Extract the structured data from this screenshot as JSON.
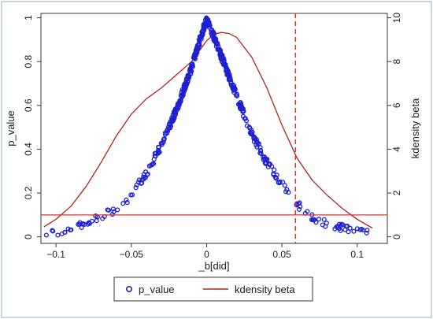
{
  "chart_data": {
    "type": "scatter",
    "xlabel": "_b[did]",
    "ylabel_left": "p_value",
    "ylabel_right": "kdensity beta",
    "xlim": [
      -0.11,
      0.12
    ],
    "ylim_left": [
      -0.03,
      1.02
    ],
    "ylim_right": [
      -0.3,
      10.2
    ],
    "x_ticks": [
      -0.1,
      -0.05,
      0,
      0.05,
      0.1
    ],
    "x_tick_labels": [
      "−0.1",
      "−0.05",
      "0",
      "0.05",
      "0.1"
    ],
    "y_left_ticks": [
      0,
      0.2,
      0.4,
      0.6,
      0.8,
      1
    ],
    "y_left_tick_labels": [
      "0",
      "0.2",
      "0.4",
      "0.6",
      "0.8",
      "1"
    ],
    "y_right_ticks": [
      0,
      2,
      4,
      6,
      8,
      10
    ],
    "y_right_tick_labels": [
      "0",
      "2",
      "4",
      "6",
      "8",
      "10"
    ],
    "reference_lines": {
      "horizontal_p_value": 0.1,
      "vertical_x": 0.059
    },
    "series": [
      {
        "name": "p_value",
        "kind": "scatter",
        "axis": "left",
        "color": "#1f1fd0",
        "envelope": [
          [
            -0.107,
            0.005
          ],
          [
            -0.1,
            0.02
          ],
          [
            -0.09,
            0.035
          ],
          [
            -0.08,
            0.06
          ],
          [
            -0.07,
            0.09
          ],
          [
            -0.06,
            0.13
          ],
          [
            -0.05,
            0.19
          ],
          [
            -0.04,
            0.29
          ],
          [
            -0.03,
            0.42
          ],
          [
            -0.02,
            0.58
          ],
          [
            -0.01,
            0.77
          ],
          [
            0,
            1.0
          ],
          [
            0.01,
            0.82
          ],
          [
            0.02,
            0.64
          ],
          [
            0.03,
            0.47
          ],
          [
            0.04,
            0.34
          ],
          [
            0.05,
            0.24
          ],
          [
            0.06,
            0.15
          ],
          [
            0.07,
            0.09
          ],
          [
            0.08,
            0.06
          ],
          [
            0.09,
            0.04
          ],
          [
            0.1,
            0.025
          ],
          [
            0.112,
            0.012
          ]
        ],
        "count": 500
      },
      {
        "name": "kdensity beta",
        "kind": "line",
        "axis": "right",
        "color": "#b22222",
        "x": [
          -0.108,
          -0.1,
          -0.09,
          -0.08,
          -0.07,
          -0.06,
          -0.05,
          -0.04,
          -0.03,
          -0.02,
          -0.01,
          0,
          0.005,
          0.01,
          0.015,
          0.02,
          0.03,
          0.04,
          0.05,
          0.06,
          0.07,
          0.08,
          0.09,
          0.1,
          0.11
        ],
        "y": [
          0.45,
          0.8,
          1.4,
          2.3,
          3.4,
          4.6,
          5.6,
          6.3,
          6.8,
          7.4,
          8.0,
          8.95,
          9.25,
          9.33,
          9.28,
          9.1,
          8.2,
          6.8,
          5.1,
          3.6,
          2.6,
          1.9,
          1.3,
          0.8,
          0.4
        ]
      }
    ],
    "legend": {
      "position": "bottom",
      "entries": [
        "p_value",
        "kdensity beta"
      ]
    }
  },
  "colors": {
    "points": "#1f1fd0",
    "density": "#b22222",
    "reference_h": "#e03030",
    "reference_v": "#e03030",
    "axis": "#333333"
  }
}
